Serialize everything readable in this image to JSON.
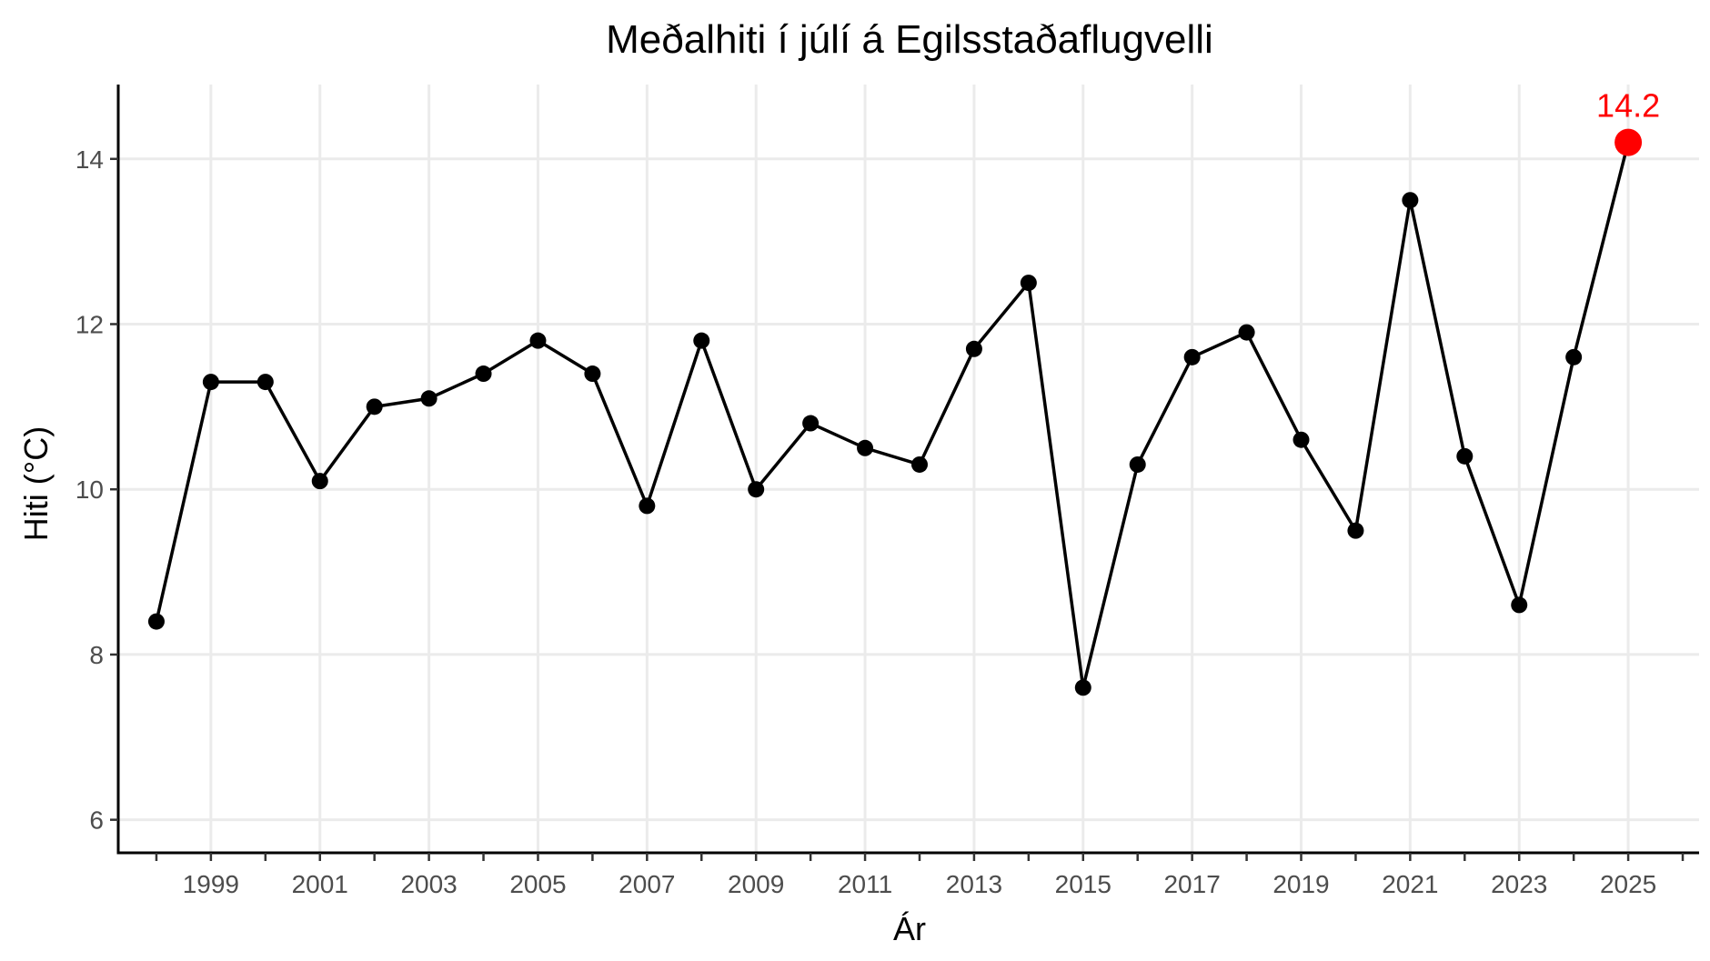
{
  "chart_data": {
    "type": "line",
    "title": "Meðalhiti í júlí á Egilsstaðaflugvelli",
    "xlabel": "Ár",
    "ylabel": "Hiti (°C)",
    "xlim": [
      1997.3,
      2026.3
    ],
    "ylim": [
      5.6,
      14.9
    ],
    "x_ticks": [
      1999,
      2001,
      2003,
      2005,
      2007,
      2009,
      2011,
      2013,
      2015,
      2017,
      2019,
      2021,
      2023,
      2025
    ],
    "x_minor_ticks": [
      1998,
      2000,
      2002,
      2004,
      2006,
      2008,
      2010,
      2012,
      2014,
      2016,
      2018,
      2020,
      2022,
      2024,
      2026
    ],
    "y_ticks": [
      6,
      8,
      10,
      12,
      14
    ],
    "grid": true,
    "series": [
      {
        "x": [
          1998,
          1999,
          2000,
          2001,
          2002,
          2003,
          2004,
          2005,
          2006,
          2007,
          2008,
          2009,
          2010,
          2011,
          2012,
          2013,
          2014,
          2015,
          2016,
          2017,
          2018,
          2019,
          2020,
          2021,
          2022,
          2023,
          2024,
          2025
        ],
        "values": [
          8.4,
          11.3,
          11.3,
          10.1,
          11.0,
          11.1,
          11.4,
          11.8,
          11.4,
          9.8,
          11.8,
          10.0,
          10.8,
          10.5,
          10.3,
          11.7,
          12.5,
          7.6,
          10.3,
          11.6,
          11.9,
          10.6,
          9.5,
          13.5,
          10.4,
          8.6,
          11.6,
          14.2
        ]
      }
    ],
    "highlight": {
      "x": 2025,
      "value": 14.2,
      "label": "14.2",
      "color": "#ff0000"
    }
  }
}
